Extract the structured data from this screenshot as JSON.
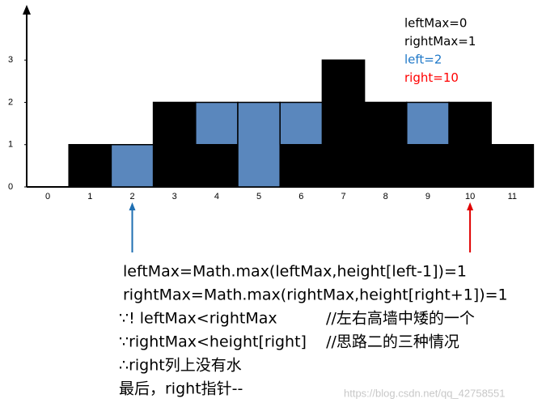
{
  "chart_data": {
    "type": "bar",
    "stacked": true,
    "categories": [
      "0",
      "1",
      "2",
      "3",
      "4",
      "5",
      "6",
      "7",
      "8",
      "9",
      "10",
      "11"
    ],
    "series": [
      {
        "color": "#000000",
        "values": [
          0,
          1,
          0,
          2,
          1,
          0,
          1,
          3,
          2,
          1,
          2,
          1
        ]
      },
      {
        "color": "#5a87bd",
        "values": [
          0,
          0,
          1,
          0,
          1,
          2,
          1,
          0,
          0,
          1,
          0,
          0
        ]
      }
    ],
    "ylim": [
      0,
      4
    ],
    "yticks": [
      0,
      1,
      2,
      3
    ],
    "state": [
      {
        "text": "leftMax=0",
        "color": "#000000"
      },
      {
        "text": "rightMax=1",
        "color": "#000000"
      },
      {
        "text": "left=2",
        "color": "#1f78c8"
      },
      {
        "text": "right=10",
        "color": "#ff0000"
      }
    ],
    "pointers": [
      {
        "at": 2,
        "color": "#1f6fb2"
      },
      {
        "at": 10,
        "color": "#e00000"
      }
    ],
    "notes": [
      "leftMax=Math.max(leftMax,height[left-1])=1",
      "rightMax=Math.max(rightMax,height[right+1])=1",
      "∵! leftMax<rightMax          //左右高墙中矮的一个",
      "∵rightMax<height[right]    //思路二的三种情况",
      "∴right列上没有水",
      "最后，right指针--"
    ],
    "watermark": "https://blog.csdn.net/qq_42758551"
  }
}
